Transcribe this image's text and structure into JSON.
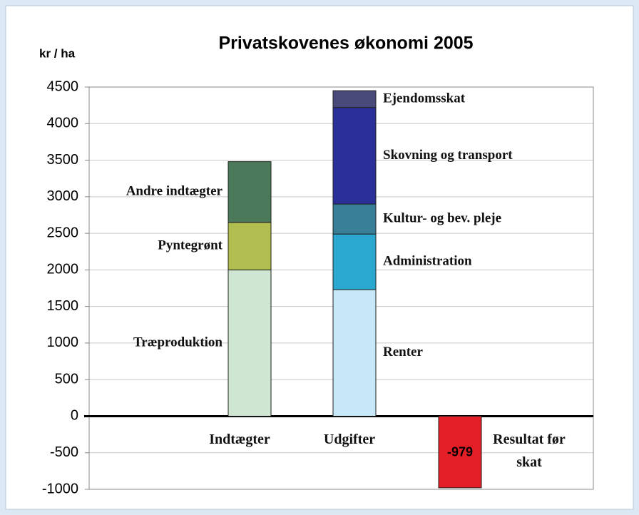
{
  "chart_data": {
    "type": "stacked_bar",
    "title": "Privatskovenes økonomi 2005",
    "y_label": "kr / ha",
    "categories": [
      "Indtægter",
      "Udgifter",
      "Resultat før skat"
    ],
    "series": [
      {
        "name": "Træproduktion",
        "color": "#cfe6d2",
        "values": [
          2000,
          null,
          null
        ]
      },
      {
        "name": "Pyntegrønt",
        "color": "#b0bf4f",
        "values": [
          650,
          null,
          null
        ]
      },
      {
        "name": "Andre indtægter",
        "color": "#4a7a5a",
        "values": [
          830,
          null,
          null
        ]
      },
      {
        "name": "Renter",
        "color": "#c6e8f8",
        "values": [
          null,
          1730,
          null
        ]
      },
      {
        "name": "Administration",
        "color": "#2aa8cf",
        "values": [
          null,
          760,
          null
        ]
      },
      {
        "name": "Kultur- og bev. pleje",
        "color": "#3a7f98",
        "values": [
          null,
          410,
          null
        ]
      },
      {
        "name": "Skovning og transport",
        "color": "#2b2f9a",
        "values": [
          null,
          1320,
          null
        ]
      },
      {
        "name": "Ejendomsskat",
        "color": "#4a4a7a",
        "values": [
          null,
          230,
          null
        ]
      },
      {
        "color": "#e41e26",
        "values": [
          null,
          null,
          -979
        ],
        "value_labels": [
          null,
          null,
          "-979"
        ]
      }
    ],
    "ylim": [
      -1000,
      4500
    ],
    "yticks": [
      -1000,
      -500,
      0,
      500,
      1000,
      1500,
      2000,
      2500,
      3000,
      3500,
      4000,
      4500
    ],
    "grid": true
  }
}
